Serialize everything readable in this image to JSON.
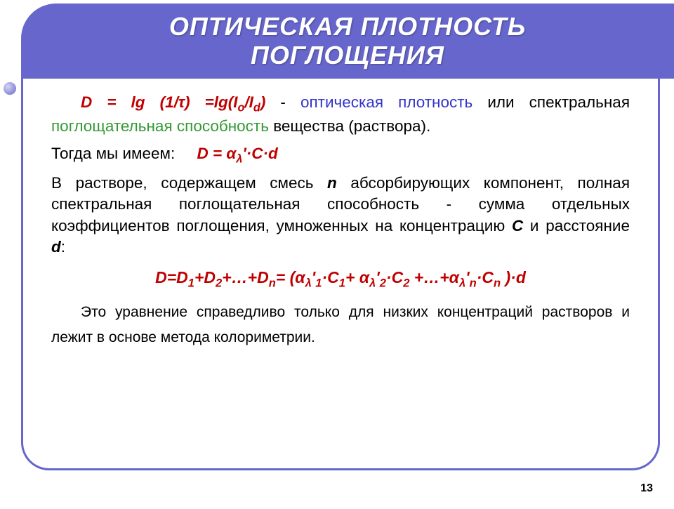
{
  "colors": {
    "accent": "#6666cc",
    "red": "#c00000",
    "blue": "#3333cc",
    "green": "#339933",
    "text": "#000000",
    "bg": "#ffffff"
  },
  "title": {
    "line1": "ОПТИЧЕСКАЯ ПЛОТНОСТЬ",
    "line2": "ПОГЛОЩЕНИЯ"
  },
  "p1": {
    "formula_lhs": "D = lg (1/",
    "tau": "τ",
    "formula_mid": ") =lg(I",
    "sub_o": "o",
    "slash": "/I",
    "sub_d": "d",
    "formula_rhs": ")",
    "dash": " - ",
    "blue_text": "оптическая плотность",
    "text_mid": " или спектральная ",
    "green_text": "поглощательная способность",
    "text_end": " вещества (раствора)."
  },
  "p2": {
    "lead": "Тогда мы имеем:",
    "formula": "D = α",
    "sub_lambda": "λ",
    "formula_end": "'·C·d"
  },
  "p3": {
    "t1": "В растворе, содержащем смесь ",
    "n": "n",
    "t2": " абсорбирующих компонент, полная спектральная поглощательная способность - сумма отдельных коэффициентов поглощения, умноженных на концентрацию ",
    "C": "C",
    "t3": " и расстояние ",
    "d": "d",
    "t4": ":"
  },
  "f2": {
    "lhs": "D=D",
    "s1": "1",
    "plus1": "+D",
    "s2": "2",
    "plus2": "+…+D",
    "sn": "n",
    "eq": "= (α",
    "lam": "λ",
    "ap1": "'",
    "i1": "1",
    "dotC1": "·C",
    "c1": "1",
    "plus3": "+ α",
    "ap2": "'",
    "i2": "2",
    "dotC2": "·C",
    "c2": "2",
    "plus4": " +…+α",
    "ap3": "'",
    "in": "n",
    "dotCn": "·C",
    "cn": "n",
    "close": " )·d"
  },
  "p4": "Это уравнение справедливо только для низких концентраций растворов и лежит в основе метода колориметрии.",
  "page_number": "13"
}
